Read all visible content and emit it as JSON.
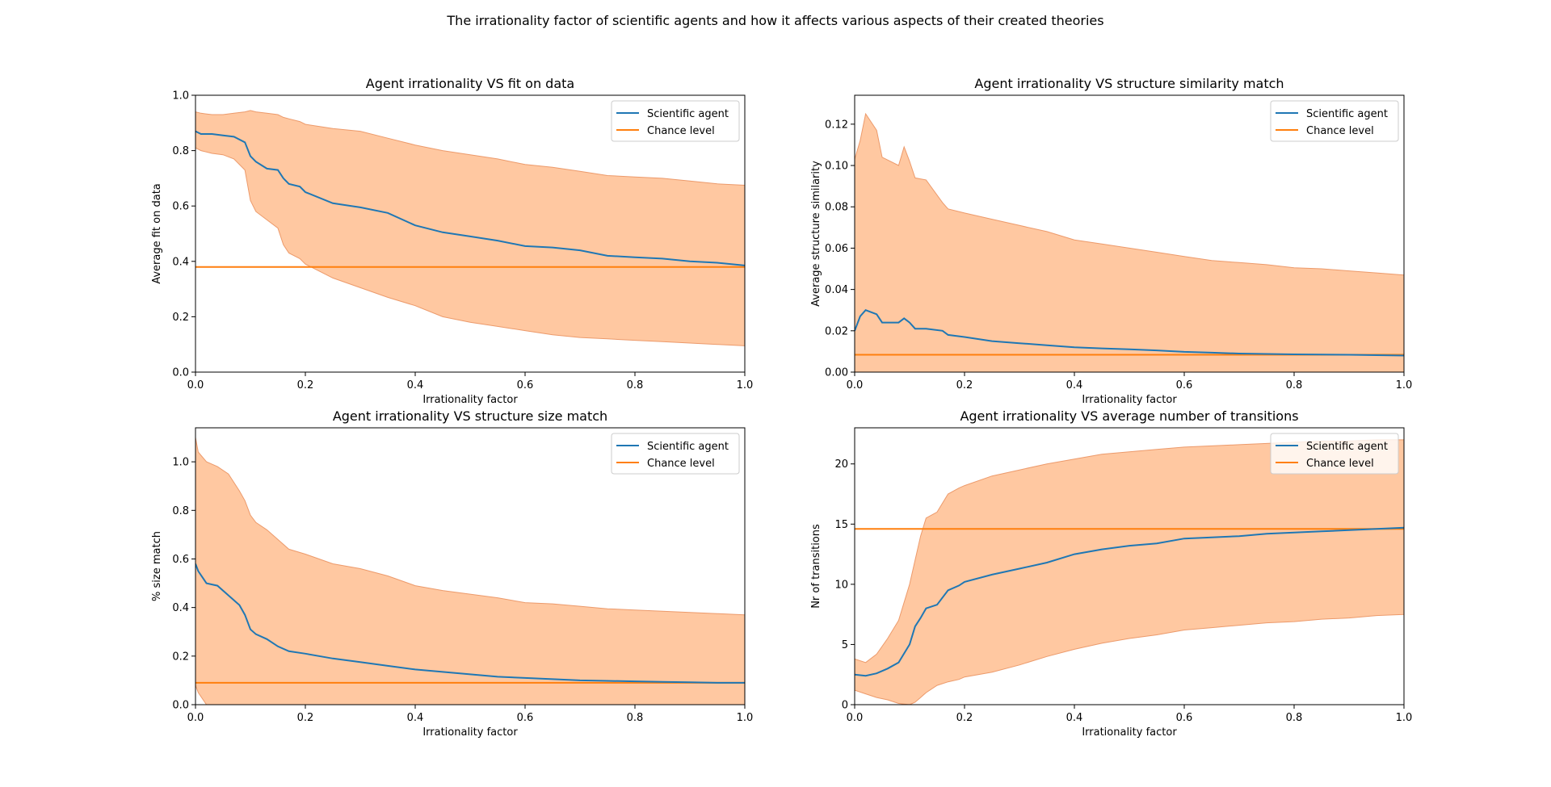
{
  "suptitle": "The irrationality factor of scientific agents and how it affects various aspects of their created theories",
  "colors": {
    "agent": "#1f77b4",
    "chance": "#ff7f0e",
    "band": "#ffc8a1",
    "band_edge": "#ec9a6b"
  },
  "chart_data": [
    {
      "type": "line",
      "title": "Agent irrationality VS fit on data",
      "xlabel": "Irrationality factor",
      "ylabel": "Average fit on data",
      "xlim": [
        0,
        1.0
      ],
      "ylim": [
        0,
        1.0
      ],
      "xticks": [
        "0.0",
        "0.2",
        "0.4",
        "0.6",
        "0.8",
        "1.0"
      ],
      "yticks": [
        "0.0",
        "0.2",
        "0.4",
        "0.6",
        "0.8",
        "1.0"
      ],
      "grid": false,
      "legend": {
        "position": "top-right",
        "entries": [
          "Scientific agent",
          "Chance level"
        ]
      },
      "x": [
        0.0,
        0.01,
        0.03,
        0.05,
        0.07,
        0.09,
        0.1,
        0.11,
        0.13,
        0.15,
        0.16,
        0.17,
        0.19,
        0.2,
        0.25,
        0.3,
        0.35,
        0.4,
        0.45,
        0.5,
        0.55,
        0.6,
        0.65,
        0.7,
        0.75,
        0.8,
        0.85,
        0.9,
        0.95,
        1.0
      ],
      "series": [
        {
          "name": "Scientific agent",
          "values": [
            0.87,
            0.86,
            0.86,
            0.855,
            0.85,
            0.83,
            0.78,
            0.76,
            0.735,
            0.73,
            0.7,
            0.68,
            0.67,
            0.65,
            0.61,
            0.595,
            0.575,
            0.53,
            0.505,
            0.49,
            0.475,
            0.455,
            0.45,
            0.44,
            0.42,
            0.415,
            0.41,
            0.4,
            0.395,
            0.385
          ]
        },
        {
          "name": "Chance level",
          "values": [
            0.38,
            0.38,
            0.38,
            0.38,
            0.38,
            0.38,
            0.38,
            0.38,
            0.38,
            0.38,
            0.38,
            0.38,
            0.38,
            0.38,
            0.38,
            0.38,
            0.38,
            0.38,
            0.38,
            0.38,
            0.38,
            0.38,
            0.38,
            0.38,
            0.38,
            0.38,
            0.38,
            0.38,
            0.38,
            0.38
          ]
        }
      ],
      "band": {
        "upper": [
          0.94,
          0.935,
          0.93,
          0.93,
          0.935,
          0.94,
          0.945,
          0.94,
          0.935,
          0.93,
          0.92,
          0.915,
          0.905,
          0.895,
          0.88,
          0.87,
          0.845,
          0.82,
          0.8,
          0.785,
          0.77,
          0.75,
          0.74,
          0.725,
          0.71,
          0.705,
          0.7,
          0.69,
          0.68,
          0.675
        ],
        "lower": [
          0.81,
          0.8,
          0.79,
          0.785,
          0.77,
          0.73,
          0.62,
          0.58,
          0.55,
          0.52,
          0.46,
          0.43,
          0.41,
          0.39,
          0.34,
          0.305,
          0.27,
          0.24,
          0.2,
          0.18,
          0.165,
          0.15,
          0.135,
          0.125,
          0.12,
          0.115,
          0.11,
          0.105,
          0.1,
          0.095
        ]
      }
    },
    {
      "type": "line",
      "title": "Agent irrationality VS structure similarity match",
      "xlabel": "Irrationality factor",
      "ylabel": "Average structure similarity",
      "xlim": [
        0,
        1.0
      ],
      "ylim": [
        0,
        0.134
      ],
      "xticks": [
        "0.0",
        "0.2",
        "0.4",
        "0.6",
        "0.8",
        "1.0"
      ],
      "yticks": [
        "0.00",
        "0.02",
        "0.04",
        "0.06",
        "0.08",
        "0.10",
        "0.12"
      ],
      "grid": false,
      "legend": {
        "position": "top-right",
        "entries": [
          "Scientific agent",
          "Chance level"
        ]
      },
      "x": [
        0.0,
        0.01,
        0.02,
        0.04,
        0.05,
        0.08,
        0.09,
        0.1,
        0.11,
        0.13,
        0.16,
        0.17,
        0.2,
        0.25,
        0.3,
        0.35,
        0.4,
        0.45,
        0.5,
        0.55,
        0.6,
        0.65,
        0.7,
        0.75,
        0.8,
        0.85,
        0.9,
        0.95,
        1.0
      ],
      "series": [
        {
          "name": "Scientific agent",
          "values": [
            0.02,
            0.027,
            0.03,
            0.028,
            0.024,
            0.024,
            0.026,
            0.024,
            0.021,
            0.021,
            0.02,
            0.018,
            0.017,
            0.015,
            0.014,
            0.013,
            0.012,
            0.0115,
            0.011,
            0.0105,
            0.0098,
            0.0094,
            0.009,
            0.0088,
            0.0086,
            0.0085,
            0.0084,
            0.0082,
            0.008
          ]
        },
        {
          "name": "Chance level",
          "values": [
            0.0084,
            0.0084,
            0.0084,
            0.0084,
            0.0084,
            0.0084,
            0.0084,
            0.0084,
            0.0084,
            0.0084,
            0.0084,
            0.0084,
            0.0084,
            0.0084,
            0.0084,
            0.0084,
            0.0084,
            0.0084,
            0.0084,
            0.0084,
            0.0084,
            0.0084,
            0.0084,
            0.0084,
            0.0084,
            0.0084,
            0.0084,
            0.0084,
            0.0084
          ]
        }
      ],
      "band": {
        "upper": [
          0.103,
          0.112,
          0.125,
          0.117,
          0.104,
          0.1,
          0.109,
          0.102,
          0.094,
          0.093,
          0.082,
          0.079,
          0.077,
          0.074,
          0.071,
          0.068,
          0.064,
          0.062,
          0.06,
          0.058,
          0.056,
          0.054,
          0.053,
          0.052,
          0.0505,
          0.05,
          0.049,
          0.048,
          0.047
        ],
        "lower": [
          0.0,
          0.0,
          0.0,
          0.0,
          0.0,
          0.0,
          0.0,
          0.0,
          0.0,
          0.0,
          0.0,
          0.0,
          0.0,
          0.0,
          0.0,
          0.0,
          0.0,
          0.0,
          0.0,
          0.0,
          0.0,
          0.0,
          0.0,
          0.0,
          0.0,
          0.0,
          0.0,
          0.0,
          0.0
        ]
      }
    },
    {
      "type": "line",
      "title": "Agent irrationality VS structure size match",
      "xlabel": "Irrationality factor",
      "ylabel": "% size match",
      "xlim": [
        0,
        1.0
      ],
      "ylim": [
        0,
        1.14
      ],
      "xticks": [
        "0.0",
        "0.2",
        "0.4",
        "0.6",
        "0.8",
        "1.0"
      ],
      "yticks": [
        "0.0",
        "0.2",
        "0.4",
        "0.6",
        "0.8",
        "1.0"
      ],
      "grid": false,
      "legend": {
        "position": "top-right",
        "entries": [
          "Scientific agent",
          "Chance level"
        ]
      },
      "x": [
        0.0,
        0.005,
        0.02,
        0.04,
        0.06,
        0.08,
        0.09,
        0.1,
        0.11,
        0.13,
        0.15,
        0.17,
        0.2,
        0.25,
        0.3,
        0.35,
        0.4,
        0.45,
        0.5,
        0.55,
        0.6,
        0.65,
        0.7,
        0.75,
        0.8,
        0.85,
        0.9,
        0.95,
        1.0
      ],
      "series": [
        {
          "name": "Scientific agent",
          "values": [
            0.58,
            0.55,
            0.5,
            0.49,
            0.45,
            0.41,
            0.37,
            0.31,
            0.29,
            0.27,
            0.24,
            0.22,
            0.21,
            0.19,
            0.175,
            0.16,
            0.145,
            0.135,
            0.125,
            0.115,
            0.11,
            0.105,
            0.1,
            0.098,
            0.096,
            0.094,
            0.092,
            0.09,
            0.09
          ]
        },
        {
          "name": "Chance level",
          "values": [
            0.09,
            0.09,
            0.09,
            0.09,
            0.09,
            0.09,
            0.09,
            0.09,
            0.09,
            0.09,
            0.09,
            0.09,
            0.09,
            0.09,
            0.09,
            0.09,
            0.09,
            0.09,
            0.09,
            0.09,
            0.09,
            0.09,
            0.09,
            0.09,
            0.09,
            0.09,
            0.09,
            0.09,
            0.09
          ]
        }
      ],
      "band": {
        "upper": [
          1.1,
          1.04,
          1.0,
          0.98,
          0.95,
          0.88,
          0.84,
          0.78,
          0.75,
          0.72,
          0.68,
          0.64,
          0.62,
          0.58,
          0.56,
          0.53,
          0.49,
          0.47,
          0.455,
          0.44,
          0.42,
          0.415,
          0.405,
          0.395,
          0.39,
          0.385,
          0.38,
          0.375,
          0.37
        ],
        "lower": [
          0.08,
          0.05,
          0.0,
          0.0,
          0.0,
          0.0,
          0.0,
          0.0,
          0.0,
          0.0,
          0.0,
          0.0,
          0.0,
          0.0,
          0.0,
          0.0,
          0.0,
          0.0,
          0.0,
          0.0,
          0.0,
          0.0,
          0.0,
          0.0,
          0.0,
          0.0,
          0.0,
          0.0,
          0.0
        ]
      }
    },
    {
      "type": "line",
      "title": "Agent irrationality VS average number of transitions",
      "xlabel": "Irrationality factor",
      "ylabel": "Nr of transitions",
      "xlim": [
        0,
        1.0
      ],
      "ylim": [
        0,
        23
      ],
      "xticks": [
        "0.0",
        "0.2",
        "0.4",
        "0.6",
        "0.8",
        "1.0"
      ],
      "yticks": [
        "0",
        "5",
        "10",
        "15",
        "20"
      ],
      "grid": false,
      "legend": {
        "position": "top-right",
        "entries": [
          "Scientific agent",
          "Chance level"
        ]
      },
      "x": [
        0.0,
        0.02,
        0.04,
        0.06,
        0.08,
        0.1,
        0.11,
        0.12,
        0.13,
        0.15,
        0.17,
        0.19,
        0.2,
        0.25,
        0.3,
        0.35,
        0.4,
        0.45,
        0.5,
        0.55,
        0.6,
        0.65,
        0.7,
        0.75,
        0.8,
        0.85,
        0.9,
        0.95,
        1.0
      ],
      "series": [
        {
          "name": "Scientific agent",
          "values": [
            2.5,
            2.4,
            2.6,
            3.0,
            3.5,
            5.0,
            6.5,
            7.2,
            8.0,
            8.3,
            9.5,
            9.9,
            10.2,
            10.8,
            11.3,
            11.8,
            12.5,
            12.9,
            13.2,
            13.4,
            13.8,
            13.9,
            14.0,
            14.2,
            14.3,
            14.4,
            14.5,
            14.6,
            14.7
          ]
        },
        {
          "name": "Chance level",
          "values": [
            14.6,
            14.6,
            14.6,
            14.6,
            14.6,
            14.6,
            14.6,
            14.6,
            14.6,
            14.6,
            14.6,
            14.6,
            14.6,
            14.6,
            14.6,
            14.6,
            14.6,
            14.6,
            14.6,
            14.6,
            14.6,
            14.6,
            14.6,
            14.6,
            14.6,
            14.6,
            14.6,
            14.6,
            14.6
          ]
        }
      ],
      "band": {
        "upper": [
          3.8,
          3.5,
          4.2,
          5.5,
          7.0,
          10.0,
          12.0,
          14.0,
          15.5,
          16.0,
          17.5,
          18.0,
          18.2,
          19.0,
          19.5,
          20.0,
          20.4,
          20.8,
          21.0,
          21.2,
          21.4,
          21.5,
          21.6,
          21.7,
          21.8,
          21.9,
          21.9,
          22.0,
          22.0
        ],
        "lower": [
          1.2,
          0.9,
          0.6,
          0.4,
          0.1,
          0.0,
          0.2,
          0.6,
          1.0,
          1.6,
          1.9,
          2.1,
          2.3,
          2.7,
          3.3,
          4.0,
          4.6,
          5.1,
          5.5,
          5.8,
          6.2,
          6.4,
          6.6,
          6.8,
          6.9,
          7.1,
          7.2,
          7.4,
          7.5
        ]
      }
    }
  ]
}
